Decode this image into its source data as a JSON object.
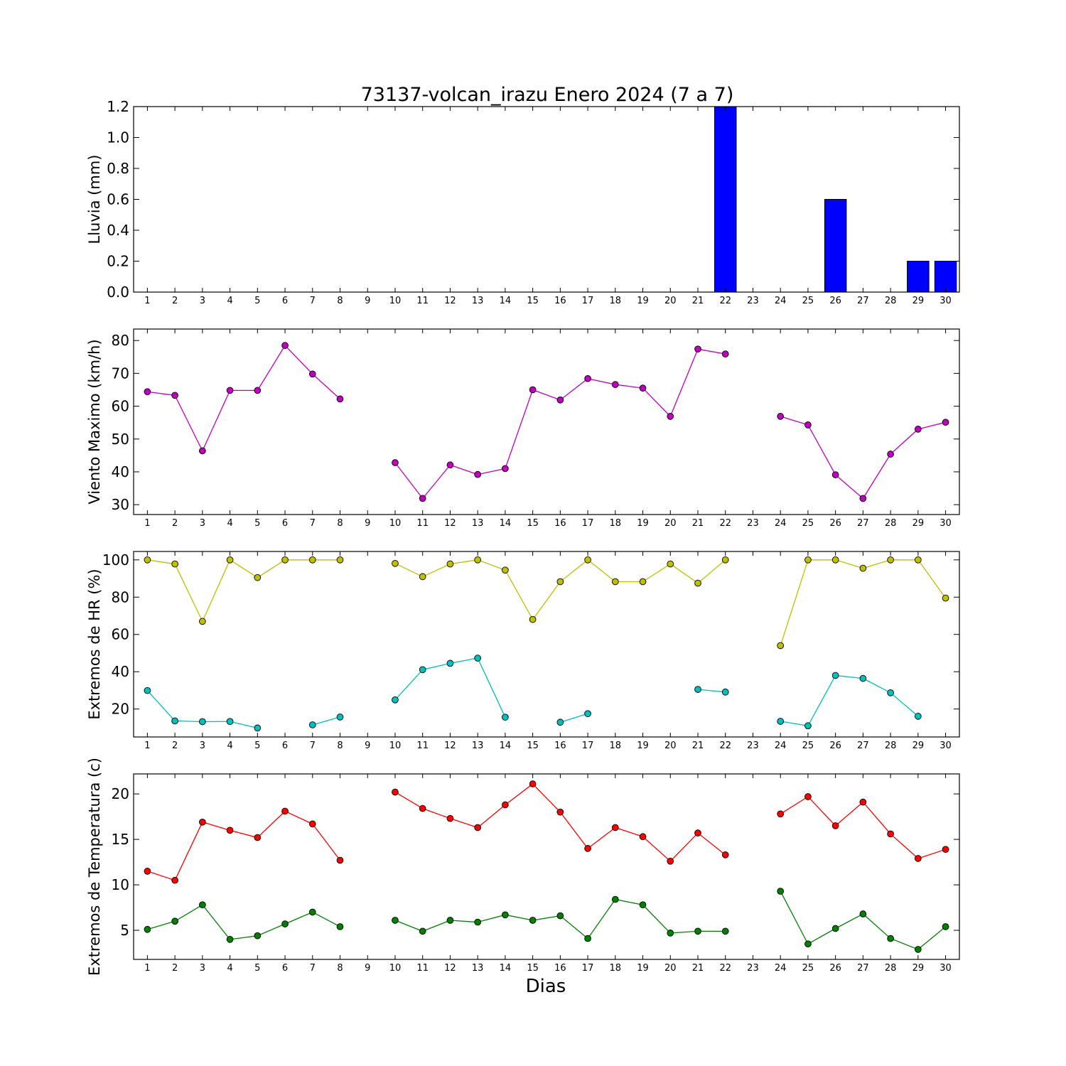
{
  "title": "73137-volcan_irazu Enero 2024  (7 a 7)",
  "xlabel": "Dias",
  "chart_data": [
    {
      "type": "bar",
      "ylabel": "Lluvia (mm)",
      "ylim": [
        0,
        1.2
      ],
      "yticks": [
        0.0,
        0.2,
        0.4,
        0.6,
        0.8,
        1.0,
        1.2
      ],
      "ytick_labels": [
        "0.0",
        "0.2",
        "0.4",
        "0.6",
        "0.8",
        "1.0",
        "1.2"
      ],
      "categories": [
        1,
        2,
        3,
        4,
        5,
        6,
        7,
        8,
        9,
        10,
        11,
        12,
        13,
        14,
        15,
        16,
        17,
        18,
        19,
        20,
        21,
        22,
        23,
        24,
        25,
        26,
        27,
        28,
        29,
        30
      ],
      "values": [
        0,
        0,
        0,
        0,
        0,
        0,
        0,
        0,
        null,
        0,
        0,
        0,
        0,
        0,
        0,
        0,
        0,
        0,
        0,
        0,
        0,
        1.2,
        null,
        0,
        0,
        0.6,
        0,
        0,
        0.2,
        0.2
      ],
      "color": "#0000ff"
    },
    {
      "type": "line",
      "ylabel": "Viento Maximo (km/h)",
      "ylim": [
        27,
        83.5
      ],
      "yticks": [
        30,
        40,
        50,
        60,
        70,
        80
      ],
      "ytick_labels": [
        "30",
        "40",
        "50",
        "60",
        "70",
        "80"
      ],
      "categories": [
        1,
        2,
        3,
        4,
        5,
        6,
        7,
        8,
        9,
        10,
        11,
        12,
        13,
        14,
        15,
        16,
        17,
        18,
        19,
        20,
        21,
        22,
        23,
        24,
        25,
        26,
        27,
        28,
        29,
        30
      ],
      "series": [
        {
          "color": "#bf00bf",
          "values": [
            64.4,
            63.3,
            46.4,
            64.8,
            64.8,
            78.5,
            69.8,
            62.2,
            null,
            42.8,
            31.9,
            42.1,
            39.2,
            41.0,
            65.0,
            61.9,
            68.4,
            66.6,
            65.5,
            56.9,
            77.4,
            75.9,
            null,
            56.9,
            54.3,
            39.1,
            31.9,
            45.4,
            53.0,
            55.1
          ]
        }
      ]
    },
    {
      "type": "line",
      "ylabel": "Extremos de HR (%)",
      "ylim": [
        5,
        104.5
      ],
      "yticks": [
        20,
        40,
        60,
        80,
        100
      ],
      "ytick_labels": [
        "20",
        "40",
        "60",
        "80",
        "100"
      ],
      "categories": [
        1,
        2,
        3,
        4,
        5,
        6,
        7,
        8,
        9,
        10,
        11,
        12,
        13,
        14,
        15,
        16,
        17,
        18,
        19,
        20,
        21,
        22,
        23,
        24,
        25,
        26,
        27,
        28,
        29,
        30
      ],
      "series": [
        {
          "color": "#bfbf00",
          "values": [
            100,
            97.8,
            67,
            100,
            90.5,
            100,
            100,
            100,
            null,
            98.1,
            91,
            97.8,
            100,
            94.5,
            68,
            88.3,
            100,
            88.3,
            88.3,
            97.8,
            87.5,
            100,
            null,
            54,
            100,
            100,
            95.5,
            100,
            100,
            79.5
          ]
        },
        {
          "color": "#00bfbf",
          "values": [
            29.9,
            13.6,
            13.2,
            13.3,
            9.8,
            null,
            11.5,
            15.7,
            null,
            24.9,
            41.1,
            44.5,
            47.3,
            15.6,
            null,
            12.9,
            17.5,
            null,
            null,
            null,
            30.5,
            29.1,
            null,
            13.4,
            11,
            38,
            36.4,
            28.7,
            16.1,
            null
          ]
        }
      ]
    },
    {
      "type": "line",
      "ylabel": "Extremos de Temperatura (c)",
      "ylim": [
        1.8,
        22.2
      ],
      "yticks": [
        5,
        10,
        15,
        20
      ],
      "ytick_labels": [
        "5",
        "10",
        "15",
        "20"
      ],
      "categories": [
        1,
        2,
        3,
        4,
        5,
        6,
        7,
        8,
        9,
        10,
        11,
        12,
        13,
        14,
        15,
        16,
        17,
        18,
        19,
        20,
        21,
        22,
        23,
        24,
        25,
        26,
        27,
        28,
        29,
        30
      ],
      "series": [
        {
          "color": "#ff0000",
          "values": [
            11.5,
            10.5,
            16.9,
            16.0,
            15.2,
            18.1,
            16.7,
            12.7,
            null,
            20.2,
            18.4,
            17.3,
            16.3,
            18.8,
            21.1,
            18.0,
            14.0,
            16.3,
            15.3,
            12.6,
            15.7,
            13.3,
            null,
            17.8,
            19.7,
            16.5,
            19.1,
            15.6,
            12.9,
            13.9
          ]
        },
        {
          "color": "#008000",
          "values": [
            5.1,
            6.0,
            7.8,
            4.0,
            4.4,
            5.7,
            7.0,
            5.4,
            null,
            6.1,
            4.9,
            6.1,
            5.9,
            6.7,
            6.1,
            6.6,
            4.1,
            8.4,
            7.8,
            4.7,
            4.9,
            4.9,
            null,
            9.3,
            3.5,
            5.2,
            6.8,
            4.1,
            2.9,
            5.4
          ]
        }
      ]
    }
  ]
}
